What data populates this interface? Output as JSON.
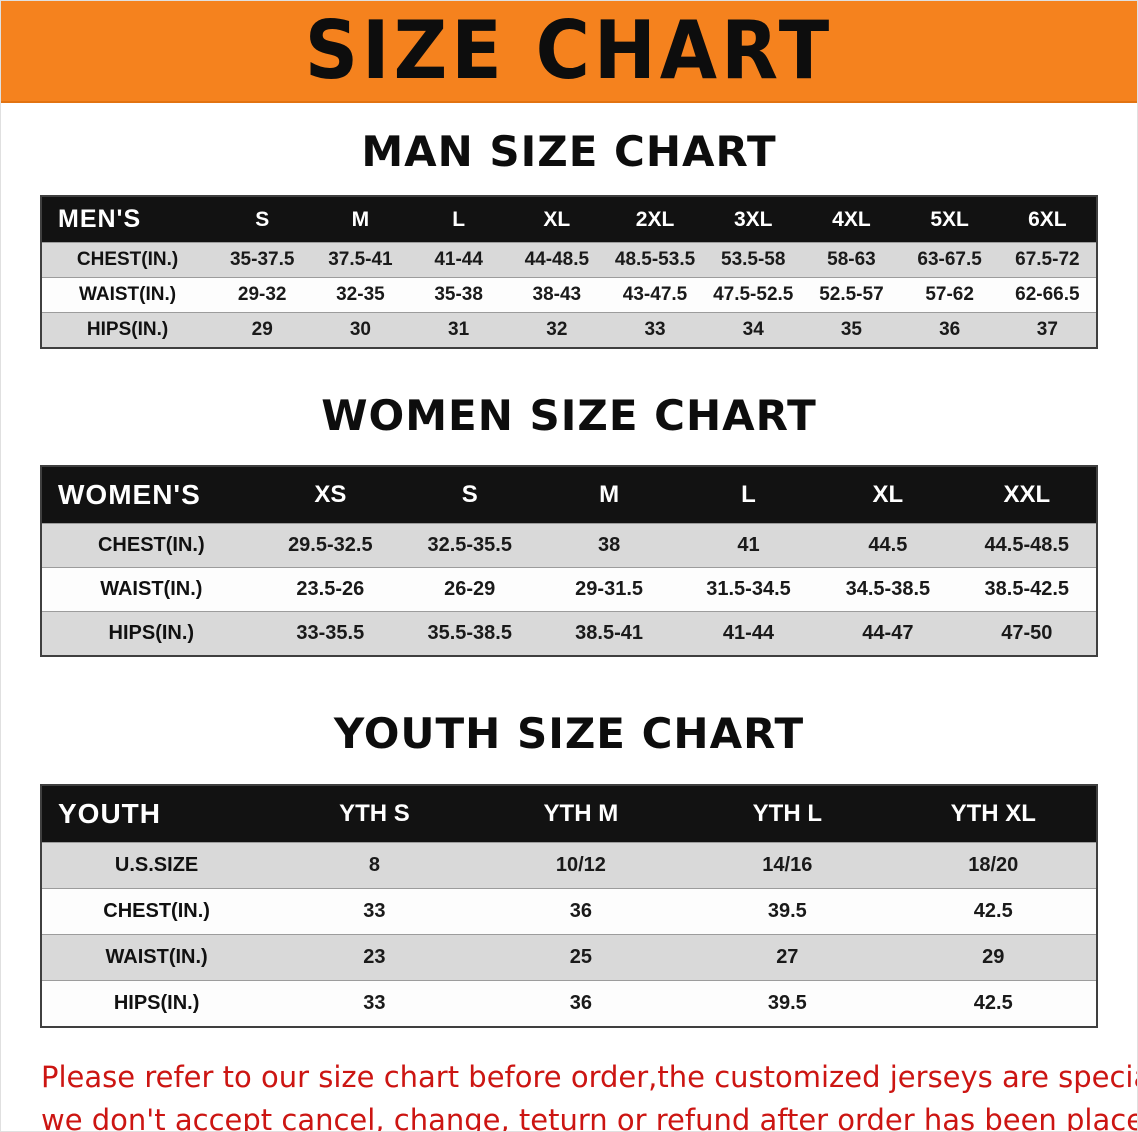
{
  "banner": {
    "title": "SIZE CHART"
  },
  "colors": {
    "banner_bg": "#f5821e",
    "header_bar_bg": "#121212",
    "row_shade": "#d9d9d9",
    "disclaimer_text": "#cc1512"
  },
  "men": {
    "heading": "MAN SIZE CHART",
    "header": [
      "MEN'S",
      "S",
      "M",
      "L",
      "XL",
      "2XL",
      "3XL",
      "4XL",
      "5XL",
      "6XL"
    ],
    "rows": [
      {
        "label": "CHEST(IN.)",
        "values": [
          "35-37.5",
          "37.5-41",
          "41-44",
          "44-48.5",
          "48.5-53.5",
          "53.5-58",
          "58-63",
          "63-67.5",
          "67.5-72"
        ]
      },
      {
        "label": "WAIST(IN.)",
        "values": [
          "29-32",
          "32-35",
          "35-38",
          "38-43",
          "43-47.5",
          "47.5-52.5",
          "52.5-57",
          "57-62",
          "62-66.5"
        ]
      },
      {
        "label": "HIPS(IN.)",
        "values": [
          "29",
          "30",
          "31",
          "32",
          "33",
          "34",
          "35",
          "36",
          "37"
        ]
      }
    ]
  },
  "women": {
    "heading": "WOMEN SIZE CHART",
    "header": [
      "WOMEN'S",
      "XS",
      "S",
      "M",
      "L",
      "XL",
      "XXL"
    ],
    "rows": [
      {
        "label": "CHEST(IN.)",
        "values": [
          "29.5-32.5",
          "32.5-35.5",
          "38",
          "41",
          "44.5",
          "44.5-48.5"
        ]
      },
      {
        "label": "WAIST(IN.)",
        "values": [
          "23.5-26",
          "26-29",
          "29-31.5",
          "31.5-34.5",
          "34.5-38.5",
          "38.5-42.5"
        ]
      },
      {
        "label": "HIPS(IN.)",
        "values": [
          "33-35.5",
          "35.5-38.5",
          "38.5-41",
          "41-44",
          "44-47",
          "47-50"
        ]
      }
    ]
  },
  "youth": {
    "heading": "YOUTH SIZE CHART",
    "header": [
      "YOUTH",
      "YTH S",
      "YTH M",
      "YTH L",
      "YTH XL"
    ],
    "rows": [
      {
        "label": "U.S.SIZE",
        "values": [
          "8",
          "10/12",
          "14/16",
          "18/20"
        ]
      },
      {
        "label": "CHEST(IN.)",
        "values": [
          "33",
          "36",
          "39.5",
          "42.5"
        ]
      },
      {
        "label": "WAIST(IN.)",
        "values": [
          "23",
          "25",
          "27",
          "29"
        ]
      },
      {
        "label": "HIPS(IN.)",
        "values": [
          "33",
          "36",
          "39.5",
          "42.5"
        ]
      }
    ]
  },
  "disclaimer": {
    "line1": "Please refer to our size chart before order,the customized jerseys are special products,",
    "line2": "we don't accept cancel, change, teturn or refund after order has been placed!"
  }
}
